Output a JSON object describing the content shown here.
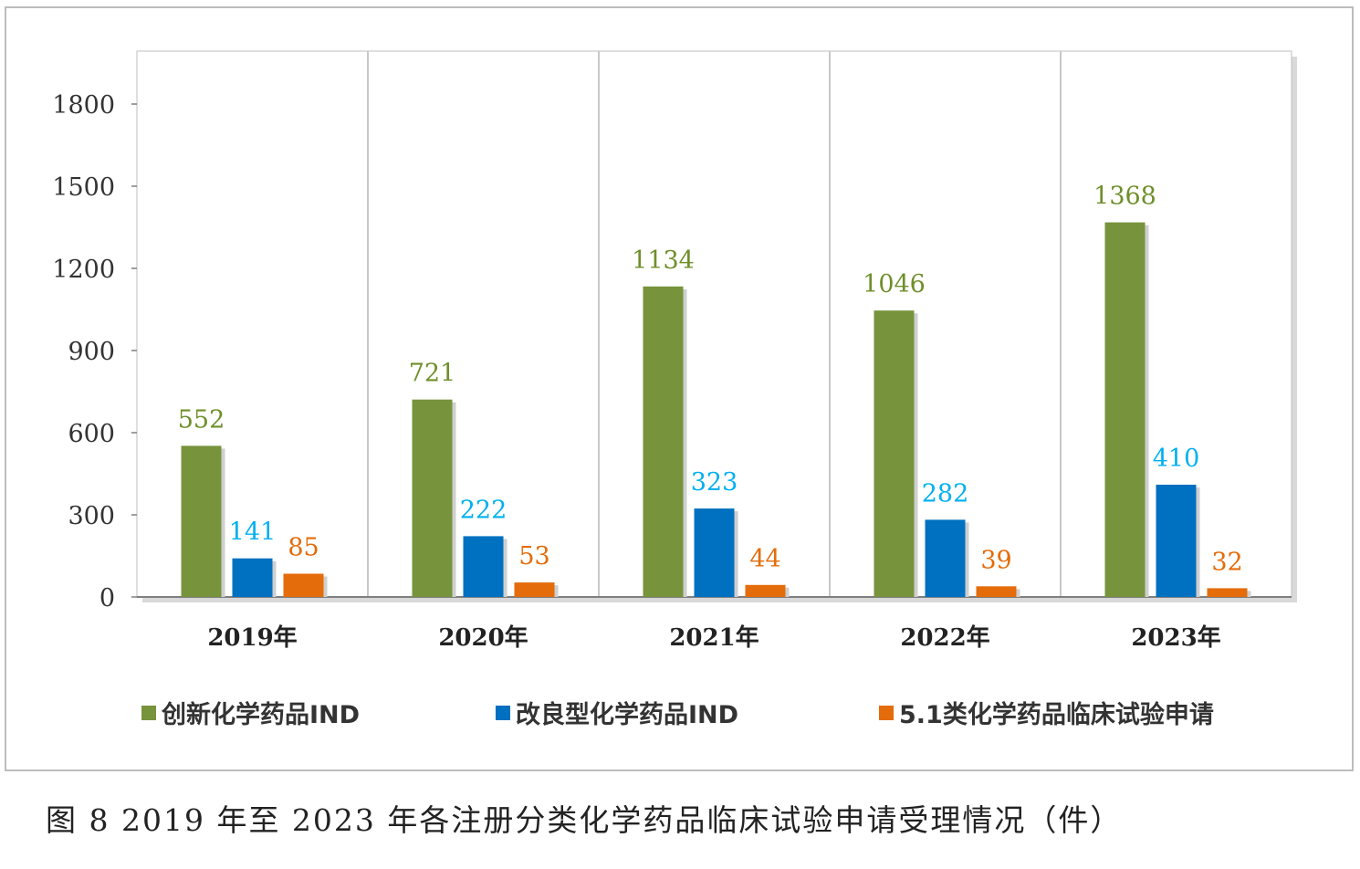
{
  "chart_data": {
    "type": "bar",
    "categories": [
      "2019年",
      "2020年",
      "2021年",
      "2022年",
      "2023年"
    ],
    "series": [
      {
        "name": "创新化学药品IND",
        "color": "#77933c",
        "label_color": "#6f8f2a",
        "values": [
          552,
          721,
          1134,
          1046,
          1368
        ]
      },
      {
        "name": "改良型化学药品IND",
        "color": "#0070c0",
        "label_color": "#00b0f0",
        "values": [
          141,
          222,
          323,
          282,
          410
        ]
      },
      {
        "name": "5.1类化学药品临床试验申请",
        "color": "#e46c0a",
        "label_color": "#e46c0a",
        "values": [
          85,
          53,
          44,
          39,
          32
        ]
      }
    ],
    "yticks": [
      "0",
      "300",
      "600",
      "900",
      "1200",
      "1500",
      "1800"
    ],
    "ylim": [
      0,
      2000
    ],
    "legend_position": "bottom",
    "grid": "vertical separators"
  },
  "legend": {
    "item1": "创新化学药品IND",
    "item2": "改良型化学药品IND",
    "item3": "5.1类化学药品临床试验申请"
  },
  "caption": "图 8   2019 年至 2023 年各注册分类化学药品临床试验申请受理情况（件）"
}
